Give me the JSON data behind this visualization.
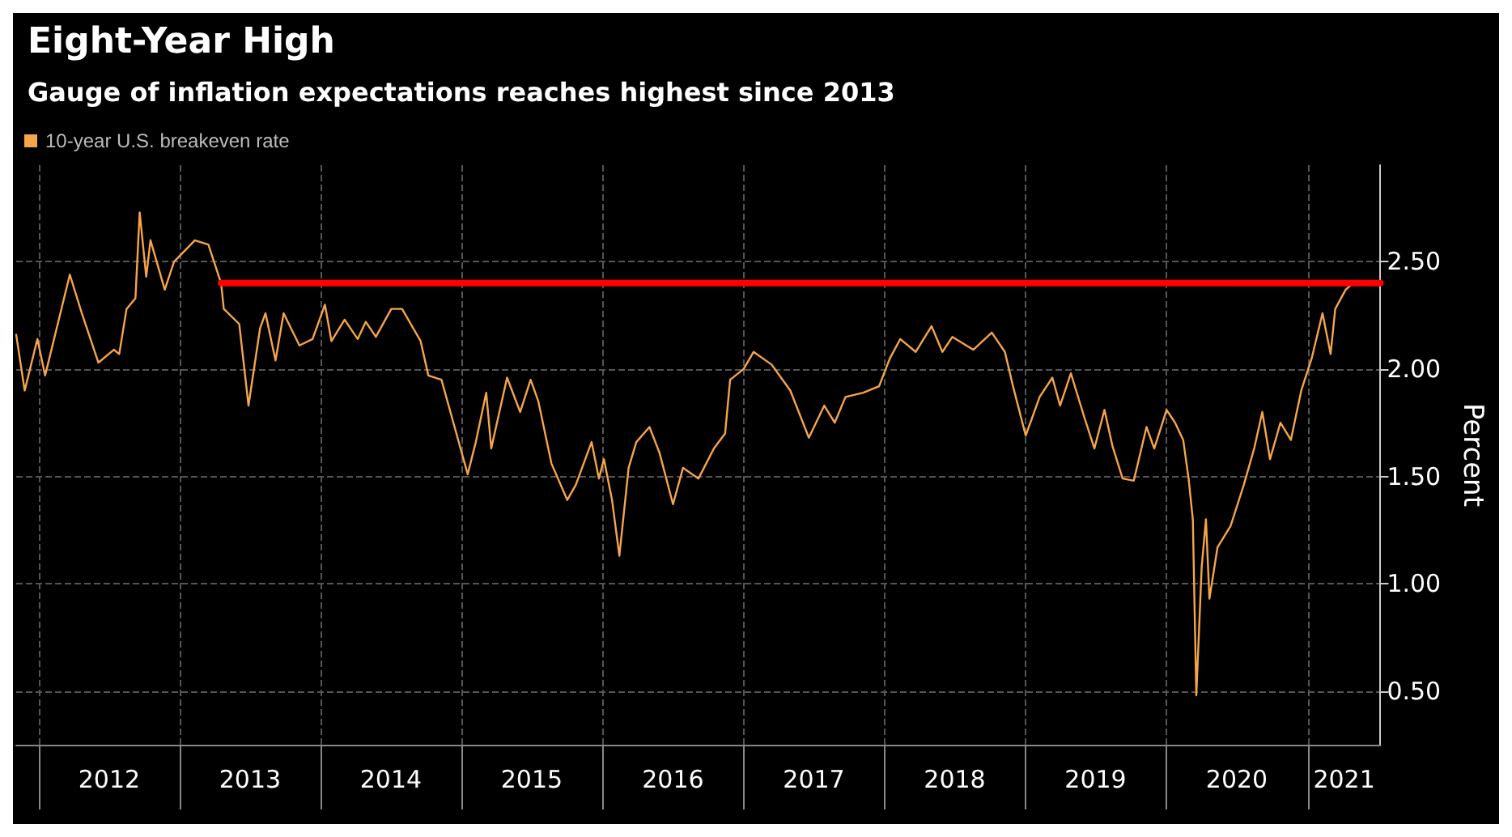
{
  "chart_data": {
    "type": "line",
    "title": "Eight-Year High",
    "subtitle": "Gauge of inflation expectations reaches highest since 2013",
    "ylabel": "Percent",
    "xlim": [
      "2011-11-03",
      "2021-07-08"
    ],
    "ylim": [
      0.25,
      2.95
    ],
    "xticks": [
      {
        "value": "2012-01-01",
        "label": null
      },
      {
        "value": "2012-07-01",
        "label": "2012"
      },
      {
        "value": "2013-01-01",
        "label": null
      },
      {
        "value": "2013-07-01",
        "label": "2013"
      },
      {
        "value": "2014-01-01",
        "label": null
      },
      {
        "value": "2014-07-01",
        "label": "2014"
      },
      {
        "value": "2015-01-01",
        "label": null
      },
      {
        "value": "2015-07-01",
        "label": "2015"
      },
      {
        "value": "2016-01-01",
        "label": null
      },
      {
        "value": "2016-07-01",
        "label": "2016"
      },
      {
        "value": "2017-01-01",
        "label": null
      },
      {
        "value": "2017-07-01",
        "label": "2017"
      },
      {
        "value": "2018-01-01",
        "label": null
      },
      {
        "value": "2018-07-01",
        "label": "2018"
      },
      {
        "value": "2019-01-01",
        "label": null
      },
      {
        "value": "2019-07-01",
        "label": "2019"
      },
      {
        "value": "2020-01-01",
        "label": null
      },
      {
        "value": "2020-07-01",
        "label": "2020"
      },
      {
        "value": "2021-01-01",
        "label": null
      },
      {
        "value": "2021-04-05",
        "label": "2021"
      }
    ],
    "yticks": [
      {
        "value": 0.5,
        "label": "0.50"
      },
      {
        "value": 1.0,
        "label": "1.00"
      },
      {
        "value": 1.5,
        "label": "1.50"
      },
      {
        "value": 2.0,
        "label": "2.00"
      },
      {
        "value": 2.5,
        "label": "2.50"
      }
    ],
    "grid": true,
    "legend": "top left",
    "marker": "none",
    "line_style": "solid",
    "series": [
      {
        "name": "10-year U.S. breakeven rate",
        "color": "#f5a54a",
        "x": [
          "2011-11-03",
          "2011-11-25",
          "2011-12-28",
          "2012-01-17",
          "2012-03-21",
          "2012-04-21",
          "2012-06-03",
          "2012-07-13",
          "2012-07-27",
          "2012-08-15",
          "2012-09-07",
          "2012-09-18",
          "2012-10-05",
          "2012-10-16",
          "2012-11-22",
          "2012-12-16",
          "2013-02-08",
          "2013-03-15",
          "2013-04-17",
          "2013-04-24",
          "2013-06-03",
          "2013-06-27",
          "2013-07-27",
          "2013-08-10",
          "2013-09-05",
          "2013-09-26",
          "2013-11-06",
          "2013-12-10",
          "2014-01-11",
          "2014-01-28",
          "2014-03-03",
          "2014-04-06",
          "2014-04-27",
          "2014-05-23",
          "2014-07-02",
          "2014-07-30",
          "2014-09-16",
          "2014-10-06",
          "2014-11-09",
          "2014-12-13",
          "2015-01-16",
          "2015-02-06",
          "2015-03-05",
          "2015-03-18",
          "2015-04-28",
          "2015-06-01",
          "2015-06-28",
          "2015-07-18",
          "2015-08-21",
          "2015-10-01",
          "2015-10-23",
          "2015-12-03",
          "2015-12-22",
          "2016-01-04",
          "2016-01-25",
          "2016-02-13",
          "2016-03-08",
          "2016-03-28",
          "2016-05-01",
          "2016-05-27",
          "2016-07-01",
          "2016-07-27",
          "2016-09-05",
          "2016-10-15",
          "2016-11-13",
          "2016-11-26",
          "2016-12-31",
          "2017-01-26",
          "2017-03-14",
          "2017-05-01",
          "2017-06-18",
          "2017-07-28",
          "2017-08-24",
          "2017-09-21",
          "2017-11-06",
          "2017-12-17",
          "2018-01-14",
          "2018-02-10",
          "2018-03-22",
          "2018-05-02",
          "2018-05-30",
          "2018-06-25",
          "2018-08-18",
          "2018-10-05",
          "2018-11-08",
          "2018-11-29",
          "2019-01-01",
          "2019-02-06",
          "2019-03-11",
          "2019-03-31",
          "2019-04-28",
          "2019-06-01",
          "2019-06-28",
          "2019-07-24",
          "2019-08-14",
          "2019-09-09",
          "2019-10-08",
          "2019-11-10",
          "2019-11-30",
          "2020-01-01",
          "2020-01-23",
          "2020-02-13",
          "2020-02-27",
          "2020-03-09",
          "2020-03-18",
          "2020-04-01",
          "2020-04-12",
          "2020-04-21",
          "2020-05-12",
          "2020-06-15",
          "2020-07-19",
          "2020-08-15",
          "2020-09-05",
          "2020-09-25",
          "2020-10-22",
          "2020-11-18",
          "2020-12-15",
          "2021-01-11",
          "2021-02-08",
          "2021-03-01",
          "2021-03-13",
          "2021-04-09",
          "2021-04-22"
        ],
        "values": [
          2.16,
          1.9,
          2.14,
          1.97,
          2.44,
          2.26,
          2.03,
          2.09,
          2.07,
          2.28,
          2.33,
          2.73,
          2.43,
          2.6,
          2.37,
          2.5,
          2.6,
          2.58,
          2.4,
          2.28,
          2.21,
          1.83,
          2.19,
          2.26,
          2.04,
          2.26,
          2.11,
          2.14,
          2.3,
          2.13,
          2.23,
          2.14,
          2.22,
          2.15,
          2.28,
          2.28,
          2.13,
          1.97,
          1.95,
          1.73,
          1.51,
          1.66,
          1.89,
          1.63,
          1.96,
          1.8,
          1.95,
          1.85,
          1.56,
          1.39,
          1.46,
          1.66,
          1.49,
          1.58,
          1.39,
          1.13,
          1.54,
          1.66,
          1.73,
          1.61,
          1.37,
          1.54,
          1.49,
          1.63,
          1.7,
          1.95,
          2.0,
          2.08,
          2.02,
          1.9,
          1.68,
          1.83,
          1.75,
          1.87,
          1.89,
          1.92,
          2.05,
          2.14,
          2.08,
          2.2,
          2.08,
          2.15,
          2.09,
          2.17,
          2.08,
          1.92,
          1.69,
          1.87,
          1.96,
          1.83,
          1.98,
          1.78,
          1.63,
          1.81,
          1.64,
          1.49,
          1.48,
          1.73,
          1.63,
          1.81,
          1.75,
          1.67,
          1.49,
          1.3,
          0.48,
          1.08,
          1.3,
          0.93,
          1.17,
          1.27,
          1.46,
          1.63,
          1.8,
          1.58,
          1.75,
          1.67,
          1.9,
          2.05,
          2.26,
          2.07,
          2.28,
          2.37,
          2.39
        ]
      },
      {
        "color": "#ff0000",
        "x": [
          "2013-04-17",
          "2021-07-08"
        ],
        "values": [
          2.4,
          2.4
        ]
      }
    ]
  }
}
